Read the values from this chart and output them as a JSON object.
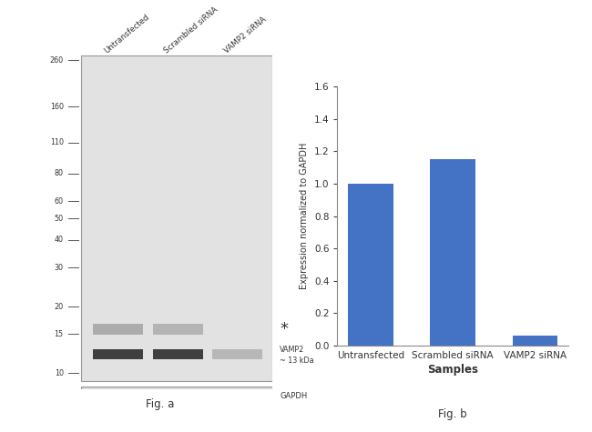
{
  "fig_width": 6.5,
  "fig_height": 4.75,
  "background_color": "#ffffff",
  "wb_panel": {
    "mw_labels": [
      "260",
      "160",
      "110",
      "80",
      "60",
      "50",
      "40",
      "30",
      "20",
      "15",
      "10"
    ],
    "mw_values": [
      260,
      160,
      110,
      80,
      60,
      50,
      40,
      30,
      20,
      15,
      10
    ],
    "lane_labels": [
      "Untransfected",
      "Scrambled siRNA",
      "VAMP2 siRNA"
    ],
    "lane_label_rotation": 40,
    "asterisk_label": "*",
    "vamp2_label": "VAMP2\n~ 13 kDa",
    "gapdh_label": "GAPDH",
    "fig_label": "Fig. a",
    "main_box_color": "#e0e0e0",
    "gapdh_box_color": "#d5d5d5",
    "box_edge_color": "#aaaaaa",
    "upper_band_color": "#888888",
    "vamp2_band_color": "#222222",
    "gapdh_band_color": "#222222",
    "upper_band_mw": 15.8,
    "vamp2_band_mw": 12.2,
    "upper_band_alphas": [
      0.6,
      0.5,
      0.0
    ],
    "vamp2_band_alphas": [
      0.85,
      0.85,
      0.22
    ],
    "gapdh_band_alpha": 0.8
  },
  "bar_panel": {
    "categories": [
      "Untransfected",
      "Scrambled siRNA",
      "VAMP2 siRNA"
    ],
    "values": [
      1.0,
      1.15,
      0.06
    ],
    "bar_color": "#4472c4",
    "bar_width": 0.55,
    "ylim": [
      0,
      1.6
    ],
    "yticks": [
      0.0,
      0.2,
      0.4,
      0.6,
      0.8,
      1.0,
      1.2,
      1.4,
      1.6
    ],
    "ylabel": "Expression normalized to GAPDH",
    "xlabel": "Samples",
    "fig_label": "Fig. b"
  }
}
